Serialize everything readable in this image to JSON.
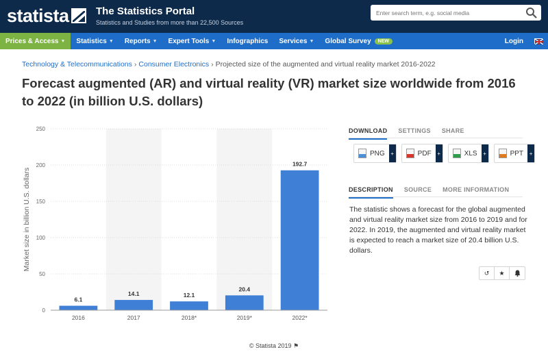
{
  "header": {
    "logo_text": "statista",
    "portal_title": "The Statistics Portal",
    "portal_subtitle": "Statistics and Studies from more than 22,500 Sources",
    "search_placeholder": "Enter search term, e.g. social media"
  },
  "nav": {
    "items": [
      {
        "label": "Prices & Access",
        "active": true,
        "caret": true
      },
      {
        "label": "Statistics",
        "caret": true
      },
      {
        "label": "Reports",
        "caret": true
      },
      {
        "label": "Expert Tools",
        "caret": true
      },
      {
        "label": "Infographics",
        "caret": false
      },
      {
        "label": "Services",
        "caret": true
      },
      {
        "label": "Global Survey",
        "caret": false
      }
    ],
    "new_badge": "NEW",
    "login": "Login"
  },
  "breadcrumb": {
    "items": [
      "Technology & Telecommunications",
      "Consumer Electronics"
    ],
    "current": "Projected size of the augmented and virtual reality market 2016-2022"
  },
  "page_title": "Forecast augmented (AR) and virtual reality (VR) market size worldwide from 2016 to 2022 (in billion U.S. dollars)",
  "chart_data": {
    "type": "bar",
    "categories": [
      "2016",
      "2017",
      "2018*",
      "2019*",
      "2022*"
    ],
    "values": [
      6.1,
      14.1,
      12.1,
      20.4,
      192.7
    ],
    "data_labels": [
      "6.1",
      "14.1",
      "12.1",
      "20.4",
      "192.7"
    ],
    "ylabel": "Market size in billion U.S. dollars",
    "xlabel": "",
    "ylim": [
      0,
      250
    ],
    "yticks": [
      0,
      50,
      100,
      150,
      200,
      250
    ],
    "grid": true,
    "bar_color": "#3f7fd6"
  },
  "credit": "© Statista 2019",
  "panel": {
    "tabs_top": [
      "DOWNLOAD",
      "SETTINGS",
      "SHARE"
    ],
    "downloads": [
      {
        "label": "PNG",
        "color": "#4a90d9"
      },
      {
        "label": "PDF",
        "color": "#d9342b"
      },
      {
        "label": "XLS",
        "color": "#2e9e4a"
      },
      {
        "label": "PPT",
        "color": "#e07a1f"
      }
    ],
    "plus": "+",
    "tabs_bottom": [
      "DESCRIPTION",
      "SOURCE",
      "MORE INFORMATION"
    ],
    "description": "The statistic shows a forecast for the global augmented and virtual reality market size from 2016 to 2019 and for 2022. In 2019, the augmented and virtual reality market is expected to reach a market size of 20.4 billion U.S. dollars."
  },
  "colors": {
    "header_bg": "#0d2a4a",
    "nav_bg": "#1d6dc9",
    "nav_active": "#7cb342",
    "link": "#1d6dc9"
  }
}
